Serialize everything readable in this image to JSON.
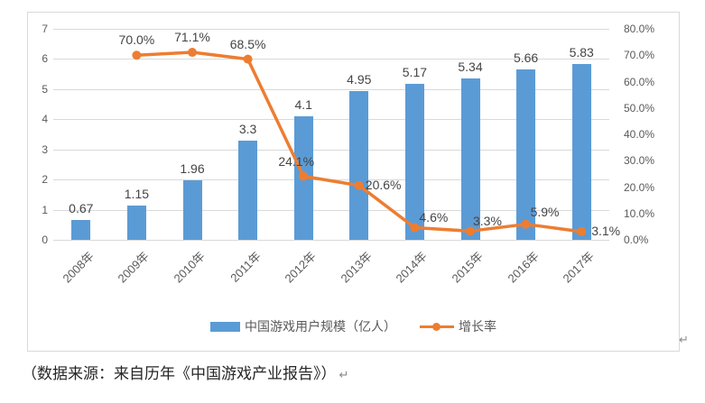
{
  "chart_data": {
    "type": "bar",
    "subtype": "combo-bar-line",
    "categories": [
      "2008年",
      "2009年",
      "2010年",
      "2011年",
      "2012年",
      "2013年",
      "2014年",
      "2015年",
      "2016年",
      "2017年"
    ],
    "series": [
      {
        "name": "中国游戏用户规模（亿人）",
        "type": "bar",
        "axis": "left",
        "color": "#5b9bd5",
        "values": [
          0.67,
          1.15,
          1.96,
          3.3,
          4.1,
          4.95,
          5.17,
          5.34,
          5.66,
          5.83
        ]
      },
      {
        "name": "增长率",
        "type": "line",
        "axis": "right",
        "color": "#ed7d31",
        "unit": "%",
        "values": [
          null,
          70.0,
          71.1,
          68.5,
          24.1,
          20.6,
          4.6,
          3.3,
          5.9,
          3.1
        ],
        "value_labels": [
          "",
          "70.0%",
          "71.1%",
          "68.5%",
          "24.1%",
          "20.6%",
          "4.6%",
          "3.3%",
          "5.9%",
          "3.1%"
        ]
      }
    ],
    "left_axis": {
      "min": 0,
      "max": 7,
      "step": 1,
      "ticks": [
        "0",
        "1",
        "2",
        "3",
        "4",
        "5",
        "6",
        "7"
      ]
    },
    "right_axis": {
      "min": 0,
      "max": 80,
      "step": 10,
      "ticks": [
        "0.0%",
        "10.0%",
        "20.0%",
        "30.0%",
        "40.0%",
        "50.0%",
        "60.0%",
        "70.0%",
        "80.0%"
      ]
    },
    "grid": true,
    "legend_position": "bottom",
    "title": ""
  },
  "colors": {
    "bar": "#5b9bd5",
    "line": "#ed7d31",
    "gridline": "#d9d9d9",
    "axis_text": "#595959",
    "data_label_text": "#444444",
    "frame_border": "#d9d9d9"
  },
  "marks": {
    "paragraph_return": "↵"
  },
  "footer": {
    "text": "（数据来源：来自历年《中国游戏产业报告》）"
  }
}
